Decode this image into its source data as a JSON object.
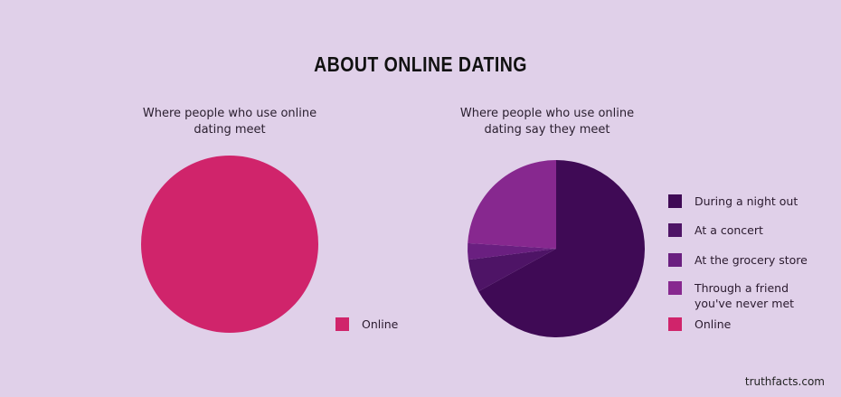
{
  "title": "ABOUT ONLINE DATING",
  "credit": "truthfacts.com",
  "chart_data": [
    {
      "type": "pie",
      "title": "Where people who use online dating meet",
      "categories": [
        "Online"
      ],
      "values": [
        100
      ],
      "colors": [
        "#d0246b"
      ]
    },
    {
      "type": "pie",
      "title": "Where people who use online dating say they meet",
      "categories": [
        "During a night out",
        "At a concert",
        "At the grocery store",
        "Through a friend you've never met",
        "Online"
      ],
      "values": [
        67,
        6,
        3,
        24,
        0
      ],
      "colors": [
        "#3f0a55",
        "#4e1466",
        "#6a1f80",
        "#87288f",
        "#d0246b"
      ]
    }
  ]
}
